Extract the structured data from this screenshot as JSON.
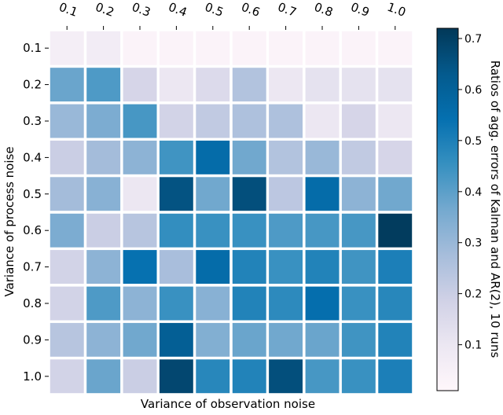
{
  "chart_data": {
    "type": "heatmap",
    "x_labels": [
      "0.1",
      "0.2",
      "0.3",
      "0.4",
      "0.5",
      "0.6",
      "0.7",
      "0.8",
      "0.9",
      "1.0"
    ],
    "y_labels": [
      "0.1",
      "0.2",
      "0.3",
      "0.4",
      "0.5",
      "0.6",
      "0.7",
      "0.8",
      "0.9",
      "1.0"
    ],
    "xlabel": "Variance of observation noise",
    "ylabel": "Variance of process noise",
    "colorbar_label": "Ratios of agg. errors of Kalman and AR(2), 10 runs",
    "colorbar_ticks": [
      "0.1",
      "0.2",
      "0.3",
      "0.4",
      "0.5",
      "0.6",
      "0.7"
    ],
    "colorbar_range": [
      0.01,
      0.72
    ],
    "colormap": "PuBu",
    "x_tick_position": "top",
    "values": [
      [
        0.06,
        0.07,
        0.03,
        0.03,
        0.03,
        0.03,
        0.03,
        0.03,
        0.03,
        0.03
      ],
      [
        0.38,
        0.42,
        0.17,
        0.1,
        0.15,
        0.25,
        0.1,
        0.12,
        0.12,
        0.12
      ],
      [
        0.3,
        0.35,
        0.43,
        0.18,
        0.22,
        0.26,
        0.26,
        0.1,
        0.17,
        0.1
      ],
      [
        0.2,
        0.28,
        0.32,
        0.44,
        0.56,
        0.37,
        0.25,
        0.3,
        0.22,
        0.17
      ],
      [
        0.28,
        0.33,
        0.1,
        0.65,
        0.37,
        0.66,
        0.23,
        0.56,
        0.32,
        0.37
      ],
      [
        0.35,
        0.2,
        0.24,
        0.46,
        0.45,
        0.45,
        0.42,
        0.43,
        0.43,
        0.71
      ],
      [
        0.18,
        0.32,
        0.54,
        0.27,
        0.56,
        0.49,
        0.45,
        0.49,
        0.44,
        0.5
      ],
      [
        0.18,
        0.42,
        0.32,
        0.45,
        0.33,
        0.49,
        0.47,
        0.55,
        0.45,
        0.48
      ],
      [
        0.24,
        0.32,
        0.37,
        0.61,
        0.34,
        0.38,
        0.37,
        0.38,
        0.44,
        0.49
      ],
      [
        0.18,
        0.38,
        0.2,
        0.68,
        0.48,
        0.49,
        0.66,
        0.43,
        0.45,
        0.5
      ]
    ]
  }
}
